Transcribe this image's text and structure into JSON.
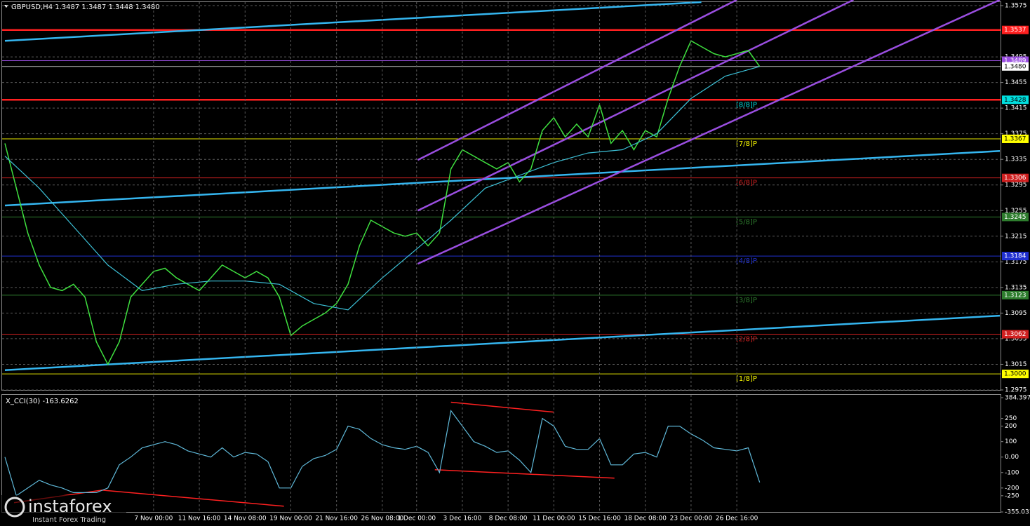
{
  "chart_data": [
    {
      "type": "price",
      "title": "GBPUSD,H4  1.3487 1.3487 1.3448 1.3480",
      "xlim": [
        0,
        87
      ],
      "ylim": [
        1.2975,
        1.3575
      ],
      "yticks": [
        1.3575,
        1.3495,
        1.3455,
        1.3415,
        1.3375,
        1.3335,
        1.3295,
        1.3255,
        1.3215,
        1.3175,
        1.3135,
        1.3095,
        1.3055,
        1.3015,
        1.2975
      ],
      "xticks": [
        {
          "value": 13,
          "label": "7 Nov 00:00"
        },
        {
          "value": 17,
          "label": "11 Nov 16:00"
        },
        {
          "value": 21,
          "label": "14 Nov 08:00"
        },
        {
          "value": 25,
          "label": "19 Nov 00:00"
        },
        {
          "value": 29,
          "label": "21 Nov 16:00"
        },
        {
          "value": 33,
          "label": "26 Nov 08:00"
        },
        {
          "value": 36,
          "label": "1 Dec 00:00"
        },
        {
          "value": 40,
          "label": "3 Dec 16:00"
        },
        {
          "value": 44,
          "label": "8 Dec 08:00"
        },
        {
          "value": 48,
          "label": "11 Dec 00:00"
        },
        {
          "value": 52,
          "label": "15 Dec 16:00"
        },
        {
          "value": 56,
          "label": "18 Dec 08:00"
        },
        {
          "value": 60,
          "label": "23 Dec 00:00"
        },
        {
          "value": 64,
          "label": "26 Dec 16:00"
        }
      ],
      "grid": true,
      "series": [
        {
          "color": "#3fe03f",
          "x": [
            0,
            1,
            2,
            3,
            4,
            5,
            6,
            7,
            8,
            9,
            10,
            11,
            12,
            13,
            14,
            15,
            16,
            17,
            18,
            19,
            20,
            21,
            22,
            23,
            24,
            25,
            26,
            27,
            28,
            29,
            30,
            31,
            32,
            33,
            34,
            35,
            36,
            37,
            38,
            39,
            40,
            41,
            42,
            43,
            44,
            45,
            46,
            47,
            48,
            49,
            50,
            51,
            52,
            53,
            54,
            55,
            56,
            57,
            58,
            59,
            60,
            61,
            62,
            63,
            64,
            65,
            66
          ],
          "values": [
            1.336,
            1.329,
            1.322,
            1.317,
            1.3135,
            1.313,
            1.314,
            1.312,
            1.305,
            1.3015,
            1.305,
            1.312,
            1.314,
            1.316,
            1.3165,
            1.315,
            1.314,
            1.313,
            1.315,
            1.317,
            1.316,
            1.315,
            1.316,
            1.315,
            1.312,
            1.306,
            1.3075,
            1.3085,
            1.3095,
            1.311,
            1.314,
            1.32,
            1.324,
            1.323,
            1.322,
            1.3215,
            1.322,
            1.32,
            1.322,
            1.332,
            1.335,
            1.334,
            1.333,
            1.332,
            1.333,
            1.33,
            1.332,
            1.338,
            1.34,
            1.337,
            1.339,
            1.337,
            1.342,
            1.336,
            1.338,
            1.335,
            1.338,
            1.337,
            1.343,
            1.348,
            1.352,
            1.351,
            1.35,
            1.3495,
            1.35,
            1.3505,
            1.348
          ]
        },
        {
          "color": "#3cc0d6",
          "x": [
            0,
            3,
            6,
            9,
            12,
            15,
            18,
            21,
            24,
            27,
            30,
            33,
            36,
            39,
            42,
            45,
            48,
            51,
            54,
            57,
            60,
            63,
            66
          ],
          "values": [
            1.334,
            1.329,
            1.323,
            1.317,
            1.313,
            1.314,
            1.3145,
            1.3145,
            1.314,
            1.311,
            1.31,
            1.315,
            1.3195,
            1.324,
            1.329,
            1.331,
            1.333,
            1.3345,
            1.335,
            1.3375,
            1.343,
            1.3465,
            1.348
          ]
        }
      ],
      "trendlines": [
        {
          "color": "#35b6f0",
          "x": [
            0,
            60.9
          ],
          "values": [
            1.352,
            1.35805
          ]
        },
        {
          "color": "#35b6f0",
          "x": [
            0,
            87
          ],
          "values": [
            1.3263,
            1.3348
          ]
        },
        {
          "color": "#35b6f0",
          "x": [
            0,
            87
          ],
          "values": [
            1.3006,
            1.3091
          ]
        },
        {
          "color": "#9a4ee0",
          "x": [
            36.1,
            87
          ],
          "values": [
            1.3172,
            1.3584
          ]
        },
        {
          "color": "#9a4ee0",
          "x": [
            36.1,
            74.2
          ],
          "values": [
            1.3255,
            1.3584
          ]
        },
        {
          "color": "#9a4ee0",
          "x": [
            36.1,
            64
          ],
          "values": [
            1.3334,
            1.3584
          ]
        }
      ],
      "levels": [
        {
          "value": 1.3537,
          "label": "1.3537",
          "color": "#ff2020",
          "label_color": "#ff2020"
        },
        {
          "value": 1.3489,
          "label": "1.3489",
          "color": "#9a4ee0",
          "label_color": "#9a4ee0"
        },
        {
          "value": 1.348,
          "label": "1.3480",
          "color": "#c0c0c0",
          "label_color": "#ffffff"
        },
        {
          "value": 1.3428,
          "label": "1.3428",
          "color": "#ff2020",
          "label_color": "#00dede",
          "murray": "[8/8]P"
        },
        {
          "value": 1.3367,
          "label": "1.3367",
          "color": "#e6e600",
          "label_color": "#ffff00",
          "murray": "[7/8]P"
        },
        {
          "value": 1.3306,
          "label": "1.3306",
          "color": "#d02020",
          "label_color": "#d02020",
          "murray": "[6/8]P"
        },
        {
          "value": 1.3245,
          "label": "1.3245",
          "color": "#2e7d2e",
          "label_color": "#2e7d2e",
          "murray": "[5/8]P"
        },
        {
          "value": 1.3184,
          "label": "1.3184",
          "color": "#2030d0",
          "label_color": "#2030d0",
          "murray": "[4/8]P"
        },
        {
          "value": 1.3123,
          "label": "1.3123",
          "color": "#2e7d2e",
          "label_color": "#2e7d2e",
          "murray": "[3/8]P"
        },
        {
          "value": 1.3062,
          "label": "1.3062",
          "color": "#d02020",
          "label_color": "#d02020",
          "murray": "[2/8]P"
        },
        {
          "value": 1.3,
          "label": "1.3000",
          "color": "#e6e600",
          "label_color": "#ffff00",
          "murray": "[1/8]P"
        }
      ]
    },
    {
      "type": "oscillator",
      "title": "X_CCI(30) -163.6262",
      "xlim": [
        0,
        87
      ],
      "ylim": [
        -355.0311,
        384.3971
      ],
      "yticks": [
        384.3971,
        250,
        200,
        100,
        {
          "value": 0,
          "label": "0.00"
        },
        -100,
        -200,
        -250,
        -355.0311
      ],
      "series": [
        {
          "color": "#5fb8d8",
          "x": [
            0,
            1,
            2,
            3,
            4,
            5,
            6,
            7,
            8,
            9,
            10,
            11,
            12,
            13,
            14,
            15,
            16,
            17,
            18,
            19,
            20,
            21,
            22,
            23,
            24,
            25,
            26,
            27,
            28,
            29,
            30,
            31,
            32,
            33,
            34,
            35,
            36,
            37,
            38,
            39,
            40,
            41,
            42,
            43,
            44,
            45,
            46,
            47,
            48,
            49,
            50,
            51,
            52,
            53,
            54,
            55,
            56,
            57,
            58,
            59,
            60,
            61,
            62,
            63,
            64,
            65,
            66
          ],
          "values": [
            0,
            -250,
            -200,
            -150,
            -180,
            -200,
            -230,
            -230,
            -230,
            -200,
            -50,
            0,
            60,
            80,
            100,
            80,
            40,
            20,
            0,
            60,
            0,
            30,
            20,
            -30,
            -200,
            -200,
            -60,
            -10,
            10,
            50,
            200,
            180,
            120,
            80,
            60,
            50,
            70,
            30,
            -100,
            300,
            200,
            100,
            70,
            30,
            40,
            -20,
            -100,
            250,
            200,
            70,
            50,
            50,
            120,
            -50,
            -50,
            20,
            30,
            0,
            200,
            200,
            150,
            110,
            60,
            50,
            40,
            60,
            -163.6262
          ]
        }
      ],
      "trendlines": [
        {
          "color": "#ff2020",
          "x": [
            0.8,
            8.5
          ],
          "values": [
            -295,
            -214
          ]
        },
        {
          "color": "#ff2020",
          "x": [
            8.5,
            24.4
          ],
          "values": [
            -214,
            -318
          ]
        },
        {
          "color": "#ff2020",
          "x": [
            37.6,
            53.3
          ],
          "values": [
            -82,
            -136
          ]
        },
        {
          "color": "#ff2020",
          "x": [
            39,
            48
          ],
          "values": [
            355,
            291
          ]
        }
      ]
    }
  ],
  "branding": {
    "name": "instaforex",
    "tagline": "Instant Forex Trading"
  }
}
